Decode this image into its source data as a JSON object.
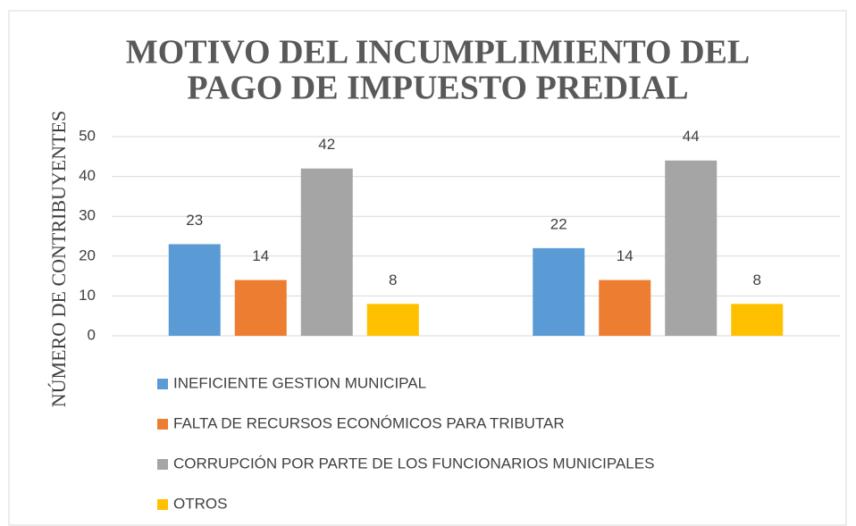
{
  "chart_data": {
    "type": "bar",
    "title": [
      "MOTIVO DEL INCUMPLIMIENTO DEL",
      "PAGO DE IMPUESTO PREDIAL"
    ],
    "y_label": "NÚMERO DE CONTRIBUYENTES",
    "categories": [
      null,
      null
    ],
    "series": [
      {
        "name": "INEFICIENTE GESTION MUNICIPAL",
        "color": "#5b9bd5",
        "values": [
          23,
          22
        ]
      },
      {
        "name": "FALTA DE RECURSOS ECONÓMICOS PARA TRIBUTAR",
        "color": "#ed7d31",
        "values": [
          14,
          14
        ]
      },
      {
        "name": "CORRUPCIÓN POR PARTE DE LOS FUNCIONARIOS MUNICIPALES",
        "color": "#a5a5a5",
        "values": [
          42,
          44
        ]
      },
      {
        "name": "OTROS",
        "color": "#ffc000",
        "values": [
          8,
          8
        ]
      }
    ],
    "ylim": [
      0,
      50
    ],
    "yticks": [
      0,
      10,
      20,
      30,
      40,
      50
    ],
    "grid": true,
    "legend": "bottom"
  }
}
